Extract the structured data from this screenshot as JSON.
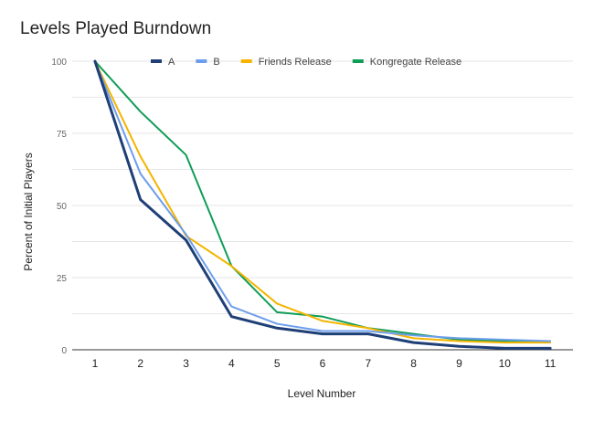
{
  "chart_data": {
    "type": "line",
    "title": "Levels Played Burndown",
    "xlabel": "Level Number",
    "ylabel": "Percent of Initial Players",
    "x": [
      1,
      2,
      3,
      4,
      5,
      6,
      7,
      8,
      9,
      10,
      11
    ],
    "ylim": [
      0,
      100
    ],
    "yticks": [
      0,
      25,
      50,
      75,
      100
    ],
    "grid": true,
    "legend_position": "top",
    "series": [
      {
        "name": "A",
        "color": "#1f3f77",
        "values": [
          100,
          52,
          38,
          11.5,
          7.5,
          5.5,
          5.5,
          2.5,
          1.2,
          0.5,
          0.5
        ]
      },
      {
        "name": "B",
        "color": "#6d9eeb",
        "values": [
          100,
          61,
          40,
          15,
          9,
          6.5,
          6.5,
          5,
          4,
          3.5,
          3
        ]
      },
      {
        "name": "Friends Release",
        "color": "#f4b400",
        "values": [
          100,
          67,
          39.5,
          29,
          16,
          10,
          7.5,
          4,
          3,
          2.5,
          2.5
        ]
      },
      {
        "name": "Kongregate Release",
        "color": "#0f9d58",
        "values": [
          100,
          82.5,
          67.5,
          29,
          13,
          11.5,
          7.5,
          5.5,
          3.5,
          3,
          3
        ]
      }
    ]
  }
}
